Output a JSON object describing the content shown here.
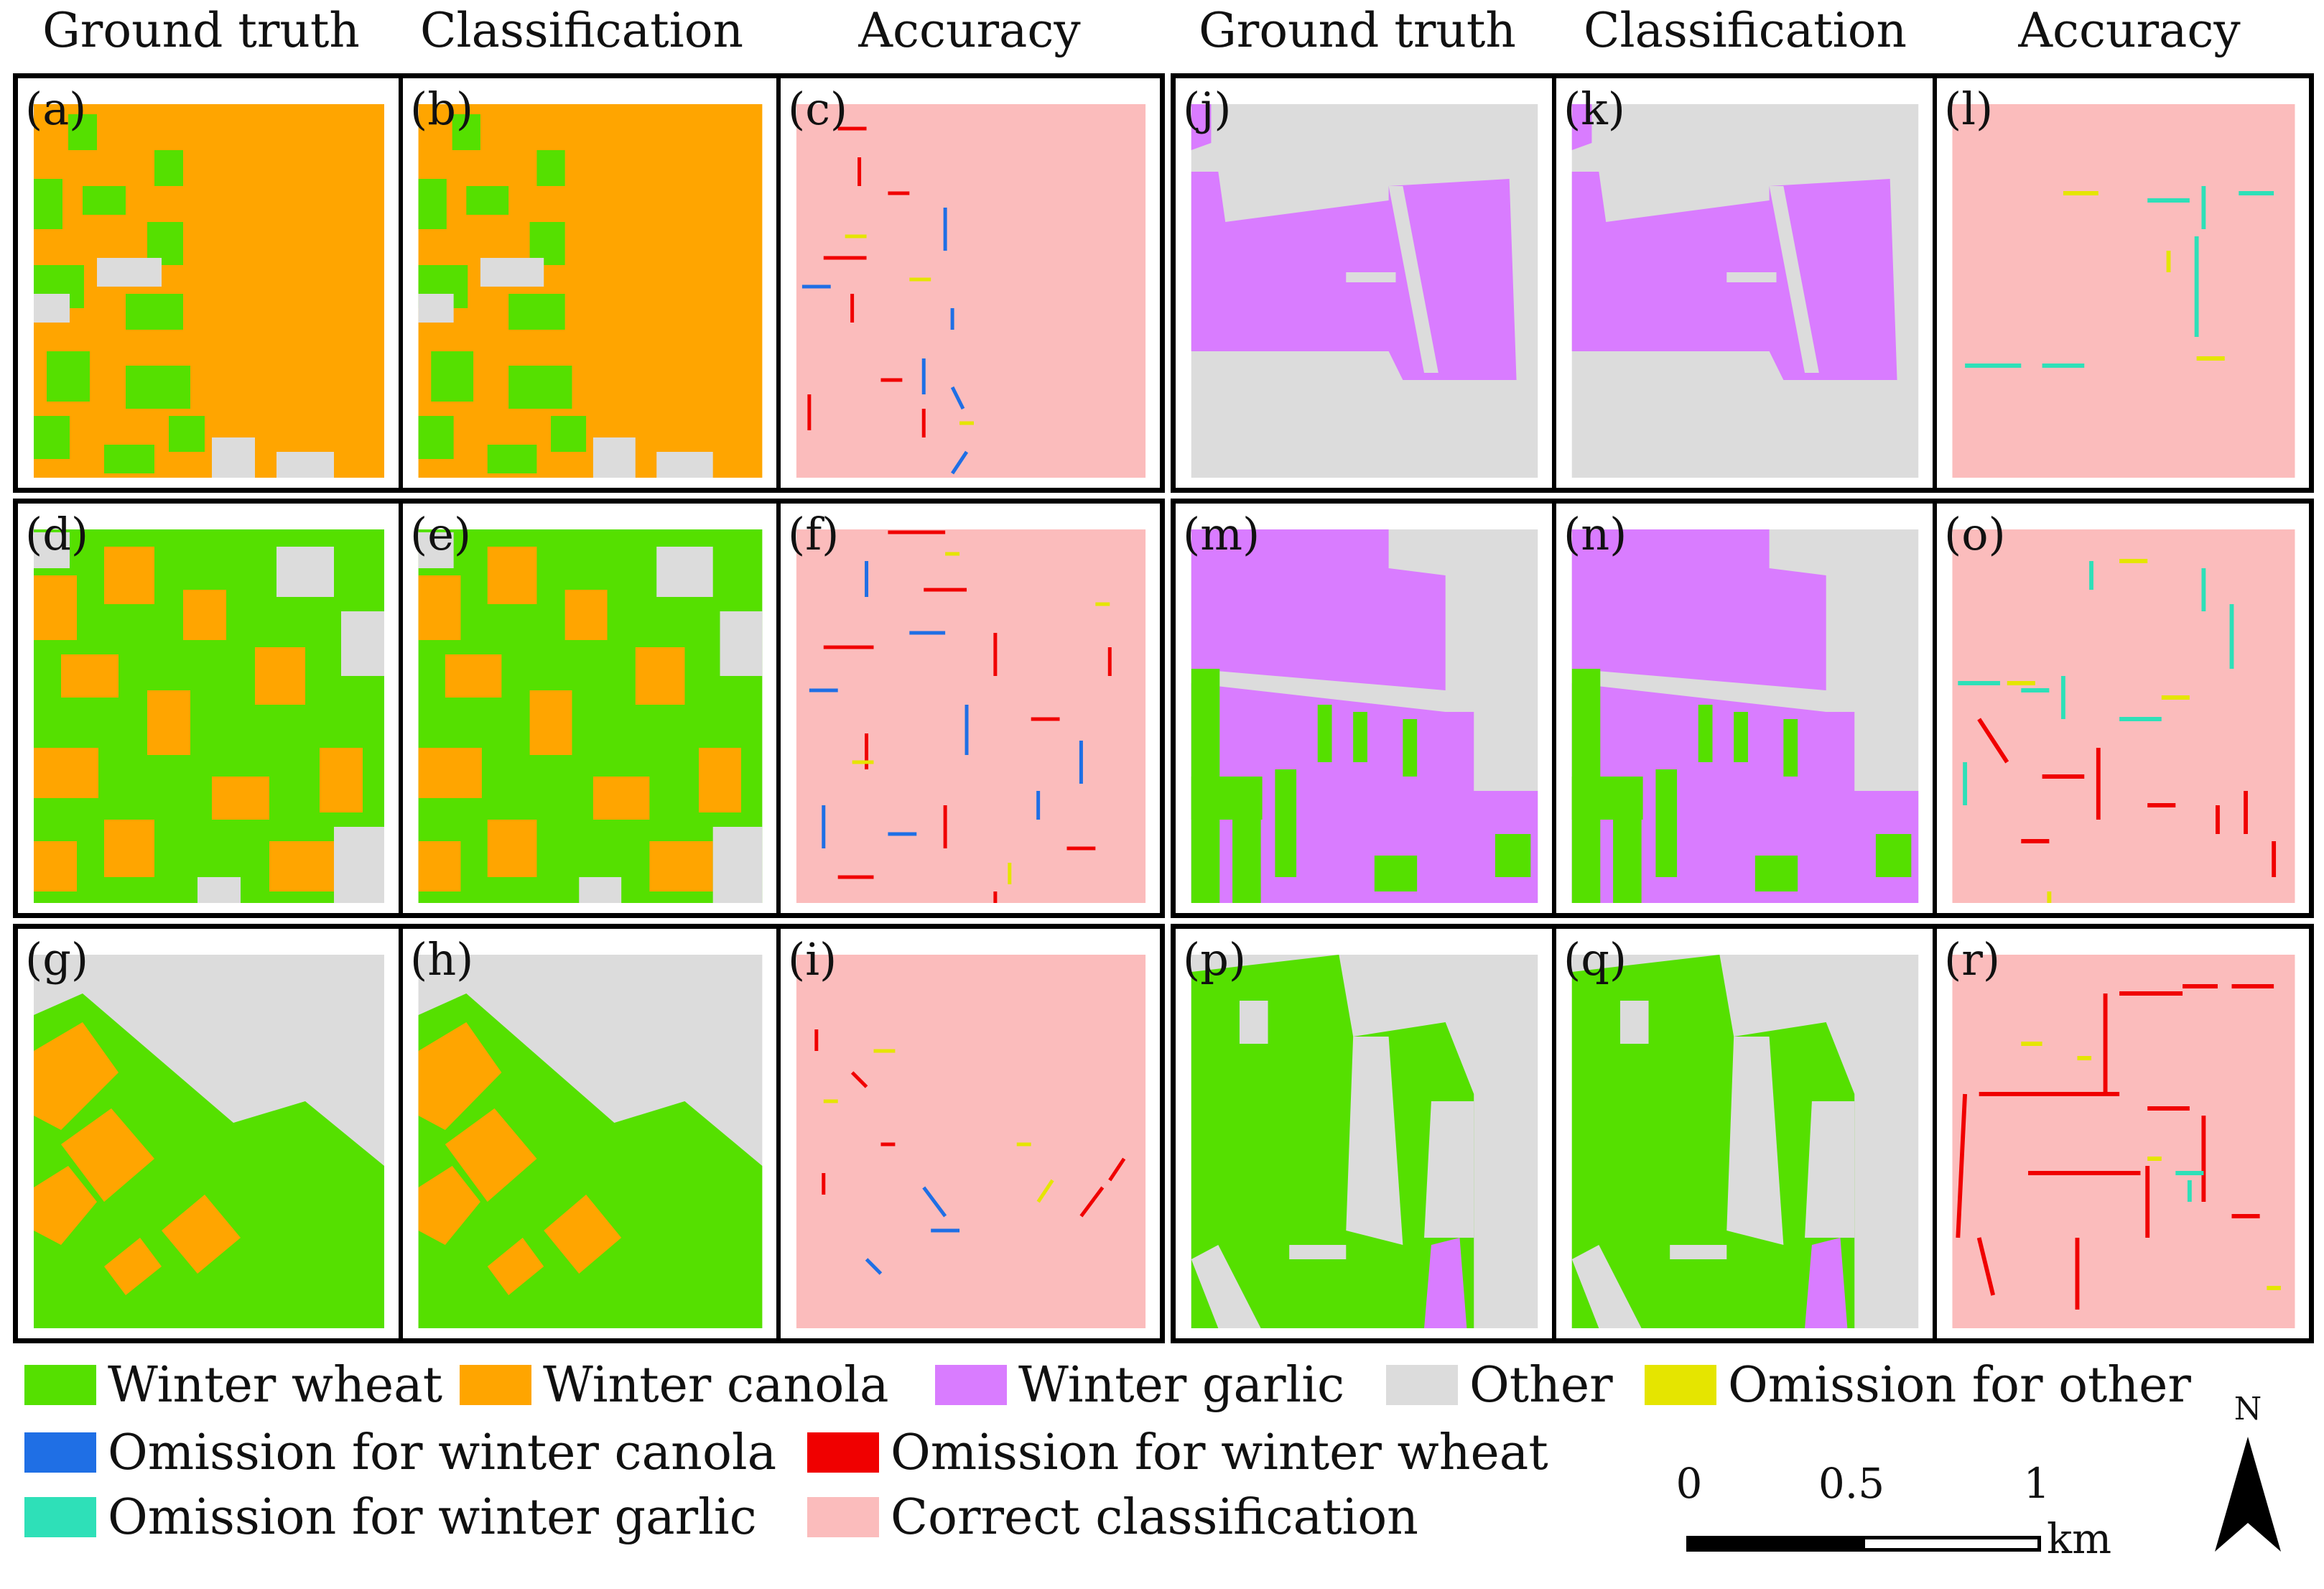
{
  "headers": [
    "Ground truth",
    "Classification",
    "Accuracy",
    "Ground truth",
    "Classification",
    "Accuracy"
  ],
  "panels": [
    "(a)",
    "(b)",
    "(c)",
    "(d)",
    "(e)",
    "(f)",
    "(g)",
    "(h)",
    "(i)",
    "(j)",
    "(k)",
    "(l)",
    "(m)",
    "(n)",
    "(o)",
    "(p)",
    "(q)",
    "(r)"
  ],
  "legend": {
    "winter_wheat": {
      "label": "Winter wheat",
      "color": "#55e000"
    },
    "winter_canola": {
      "label": "Winter canola",
      "color": "#ffa500"
    },
    "winter_garlic": {
      "label": "Winter garlic",
      "color": "#d97cff"
    },
    "other": {
      "label": "Other",
      "color": "#dcdcdc"
    },
    "omission_other": {
      "label": "Omission for other",
      "color": "#e5e500"
    },
    "omission_canola": {
      "label": "Omission for winter canola",
      "color": "#1f6fe5"
    },
    "omission_wheat": {
      "label": "Omission for winter wheat",
      "color": "#f00000"
    },
    "omission_garlic": {
      "label": "Omission for winter garlic",
      "color": "#2ee0b8"
    },
    "correct": {
      "label": "Correct classification",
      "color": "#fbbcbc"
    }
  },
  "scale": {
    "ticks": [
      "0",
      "0.5",
      "1"
    ],
    "unit": "km"
  },
  "north": {
    "label": "N"
  }
}
